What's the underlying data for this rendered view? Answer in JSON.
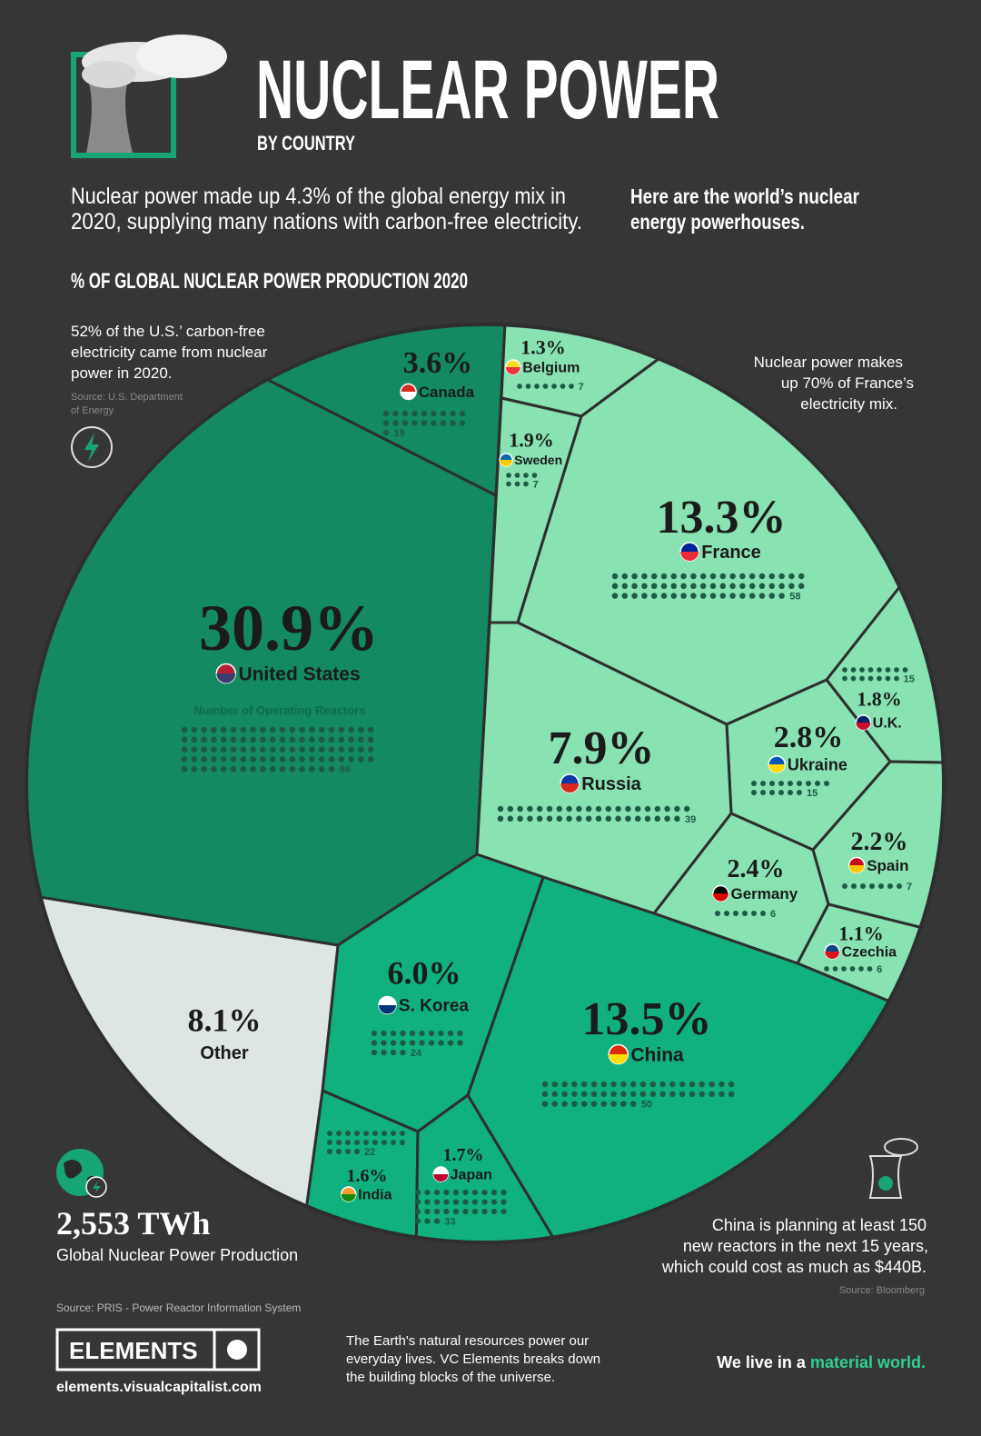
{
  "header": {
    "title": "NUCLEAR POWER",
    "subtitle": "BY COUNTRY",
    "intro": [
      "Nuclear power made up 4.3% of the global energy mix in",
      "2020, supplying many nations with carbon-free electricity."
    ],
    "tagline": [
      "Here are the world’s nuclear",
      "energy powerhouses."
    ]
  },
  "chart_data": {
    "type": "voronoi",
    "title": "% OF GLOBAL NUCLEAR POWER PRODUCTION 2020",
    "reactors_label": "Number of Operating Reactors",
    "categories": [
      "United States",
      "Canada",
      "Belgium",
      "Sweden",
      "France",
      "U.K.",
      "Ukraine",
      "Russia",
      "Spain",
      "Germany",
      "Czechia",
      "China",
      "S. Korea",
      "India",
      "Japan",
      "Other"
    ],
    "values": [
      30.9,
      3.6,
      1.3,
      1.9,
      13.3,
      1.8,
      2.8,
      7.9,
      2.2,
      2.4,
      1.1,
      13.5,
      6.0,
      1.6,
      1.7,
      8.1
    ],
    "value_labels": [
      "30.9%",
      "3.6%",
      "1.3%",
      "1.9%",
      "13.3%",
      "1.8%",
      "2.8%",
      "7.9%",
      "2.2%",
      "2.4%",
      "1.1%",
      "13.5%",
      "6.0%",
      "1.6%",
      "1.7%",
      "8.1%"
    ],
    "reactors": [
      96,
      19,
      7,
      7,
      58,
      15,
      15,
      39,
      7,
      6,
      6,
      50,
      24,
      22,
      33,
      null
    ],
    "colors": [
      "#138a62",
      "#138a62",
      "#88e2b2",
      "#88e2b2",
      "#88e2b2",
      "#88e2b2",
      "#88e2b2",
      "#88e2b2",
      "#88e2b2",
      "#88e2b2",
      "#88e2b2",
      "#10b17e",
      "#10b17e",
      "#10b17e",
      "#10b17e",
      "#dde6e3"
    ]
  },
  "notes": {
    "us": [
      "52% of the U.S.’ carbon-free",
      "electricity came from nuclear",
      "power in 2020."
    ],
    "us_source": [
      "Source: U.S. Department",
      "of Energy"
    ],
    "france": [
      "Nuclear power makes",
      "up 70% of France’s",
      "electricity mix."
    ],
    "china": [
      "China is planning at least 150",
      "new reactors in the next 15 years,",
      "which could cost as much as $440B."
    ],
    "china_source": "Source: Bloomberg",
    "total_value": "2,553 TWh",
    "total_label": "Global Nuclear Power Production"
  },
  "footer": {
    "source": "Source: PRIS - Power Reactor Information System",
    "brand": "ELEMENTS",
    "url": "elements.visualcapitalist.com",
    "blurb": [
      "The Earth's natural resources power our",
      "everyday lives. VC Elements breaks down",
      "the building blocks of the universe."
    ],
    "slogan_prefix": "We live in a",
    "slogan_highlight": "material world."
  }
}
